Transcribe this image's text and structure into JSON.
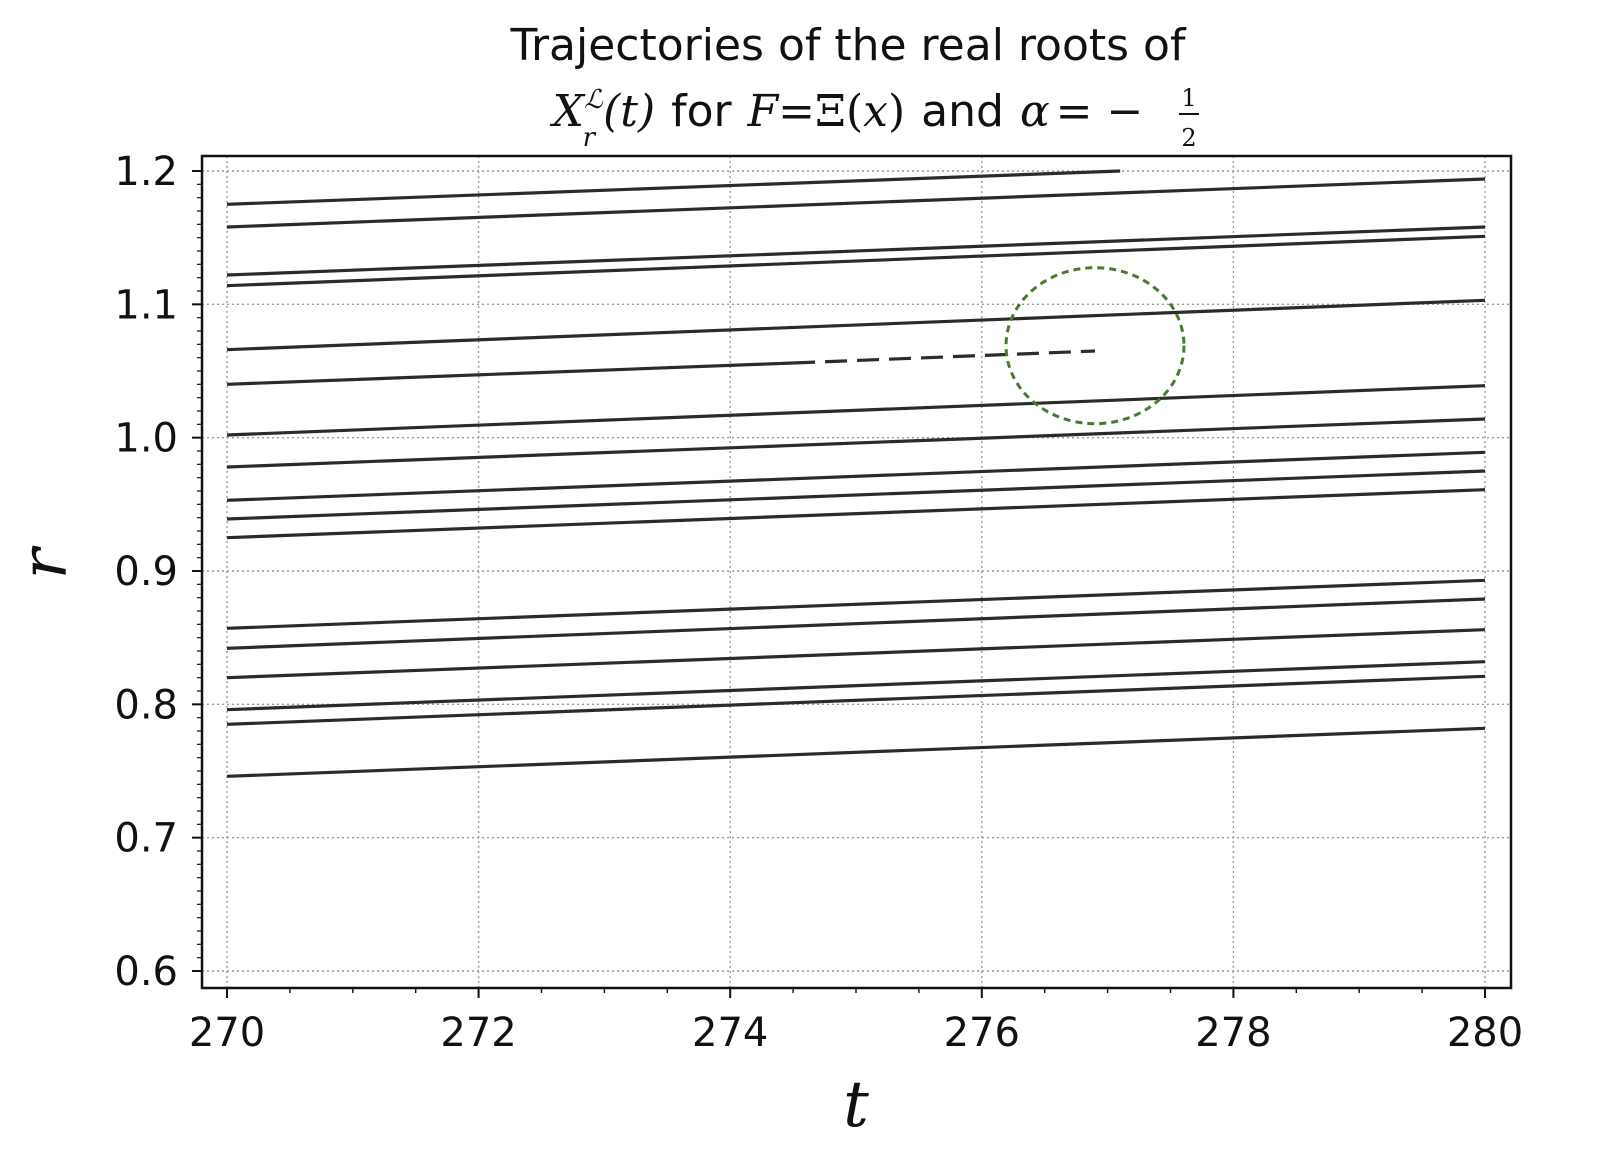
{
  "chart_data": {
    "type": "line",
    "title": {
      "line1": "Trajectories of the real roots of",
      "line2": {
        "X": "X",
        "sup": "ℒ",
        "sub": "r",
        "arg": "(t)",
        "for": "for",
        "F": "F",
        "eq1": "=",
        "xi": "Ξ(",
        "x": "x",
        "close": ")",
        "and": "and",
        "alpha": "α",
        "eq2": "= −",
        "num": "1",
        "den": "2"
      }
    },
    "xlabel": "t",
    "ylabel": "r",
    "xlim": [
      270,
      280
    ],
    "ylim": [
      0.6,
      1.2
    ],
    "grid": true,
    "x_ticks": [
      "270",
      "272",
      "274",
      "276",
      "278",
      "280"
    ],
    "y_ticks": [
      "0.6",
      "0.7",
      "0.8",
      "0.9",
      "1.0",
      "1.1",
      "1.2"
    ],
    "series": [
      {
        "x": [
          270,
          277.1
        ],
        "y": [
          1.175,
          1.2
        ],
        "style": "solid"
      },
      {
        "x": [
          270,
          280
        ],
        "y": [
          1.158,
          1.194
        ],
        "style": "solid"
      },
      {
        "x": [
          270,
          280
        ],
        "y": [
          1.122,
          1.158
        ],
        "style": "solid"
      },
      {
        "x": [
          270,
          280
        ],
        "y": [
          1.114,
          1.151
        ],
        "style": "solid"
      },
      {
        "x": [
          270,
          280
        ],
        "y": [
          1.066,
          1.103
        ],
        "style": "solid"
      },
      {
        "x": [
          270,
          274.5
        ],
        "y": [
          1.04,
          1.056
        ],
        "style": "solid"
      },
      {
        "x": [
          274.5,
          276.9
        ],
        "y": [
          1.056,
          1.065
        ],
        "style": "dashed"
      },
      {
        "x": [
          270,
          280
        ],
        "y": [
          1.002,
          1.039
        ],
        "style": "solid"
      },
      {
        "x": [
          270,
          280
        ],
        "y": [
          0.978,
          1.014
        ],
        "style": "solid"
      },
      {
        "x": [
          270,
          280
        ],
        "y": [
          0.953,
          0.989
        ],
        "style": "solid"
      },
      {
        "x": [
          270,
          280
        ],
        "y": [
          0.939,
          0.975
        ],
        "style": "solid"
      },
      {
        "x": [
          270,
          280
        ],
        "y": [
          0.925,
          0.961
        ],
        "style": "solid"
      },
      {
        "x": [
          270,
          280
        ],
        "y": [
          0.857,
          0.893
        ],
        "style": "solid"
      },
      {
        "x": [
          270,
          280
        ],
        "y": [
          0.842,
          0.879
        ],
        "style": "solid"
      },
      {
        "x": [
          270,
          280
        ],
        "y": [
          0.82,
          0.856
        ],
        "style": "solid"
      },
      {
        "x": [
          270,
          280
        ],
        "y": [
          0.796,
          0.832
        ],
        "style": "solid"
      },
      {
        "x": [
          270,
          280
        ],
        "y": [
          0.785,
          0.821
        ],
        "style": "solid"
      },
      {
        "x": [
          270,
          280
        ],
        "y": [
          0.746,
          0.782
        ],
        "style": "solid"
      }
    ],
    "annotations": [
      {
        "type": "dashed-circle",
        "color": "#4a7a2e",
        "center": [
          276.9,
          1.069
        ]
      }
    ],
    "colors": {
      "lines": "#2b2b2b",
      "grid": "#9a9a9a",
      "axes": "#111111",
      "circle": "#4a7a2e"
    }
  }
}
